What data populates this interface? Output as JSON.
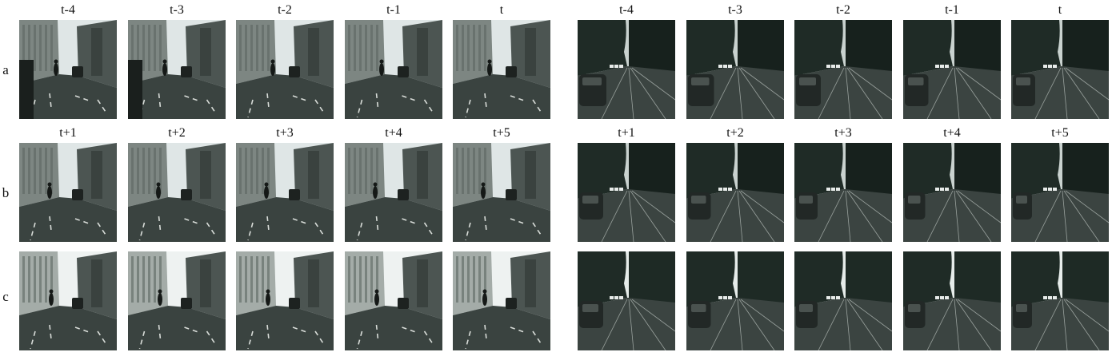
{
  "figure": {
    "rows": [
      {
        "label": "a",
        "frames": [
          "t-4",
          "t-3",
          "t-2",
          "t-1",
          "t"
        ]
      },
      {
        "label": "b",
        "frames": [
          "t+1",
          "t+2",
          "t+3",
          "t+4",
          "t+5"
        ]
      },
      {
        "label": "c",
        "frames": [
          "",
          "",
          "",
          "",
          ""
        ]
      }
    ],
    "panels": [
      {
        "scene": "city-street-cyclist",
        "scene_icon": "city-street-with-cyclist"
      },
      {
        "scene": "tree-lined-road-cars",
        "scene_icon": "tree-lined-road-with-cars"
      }
    ],
    "colors": {
      "sky": "#dfe6e6",
      "road": "#3a4340",
      "building": "#7d8682",
      "trees": "#1f2b26",
      "lane": "#d8dcd8",
      "text": "#111111"
    }
  }
}
